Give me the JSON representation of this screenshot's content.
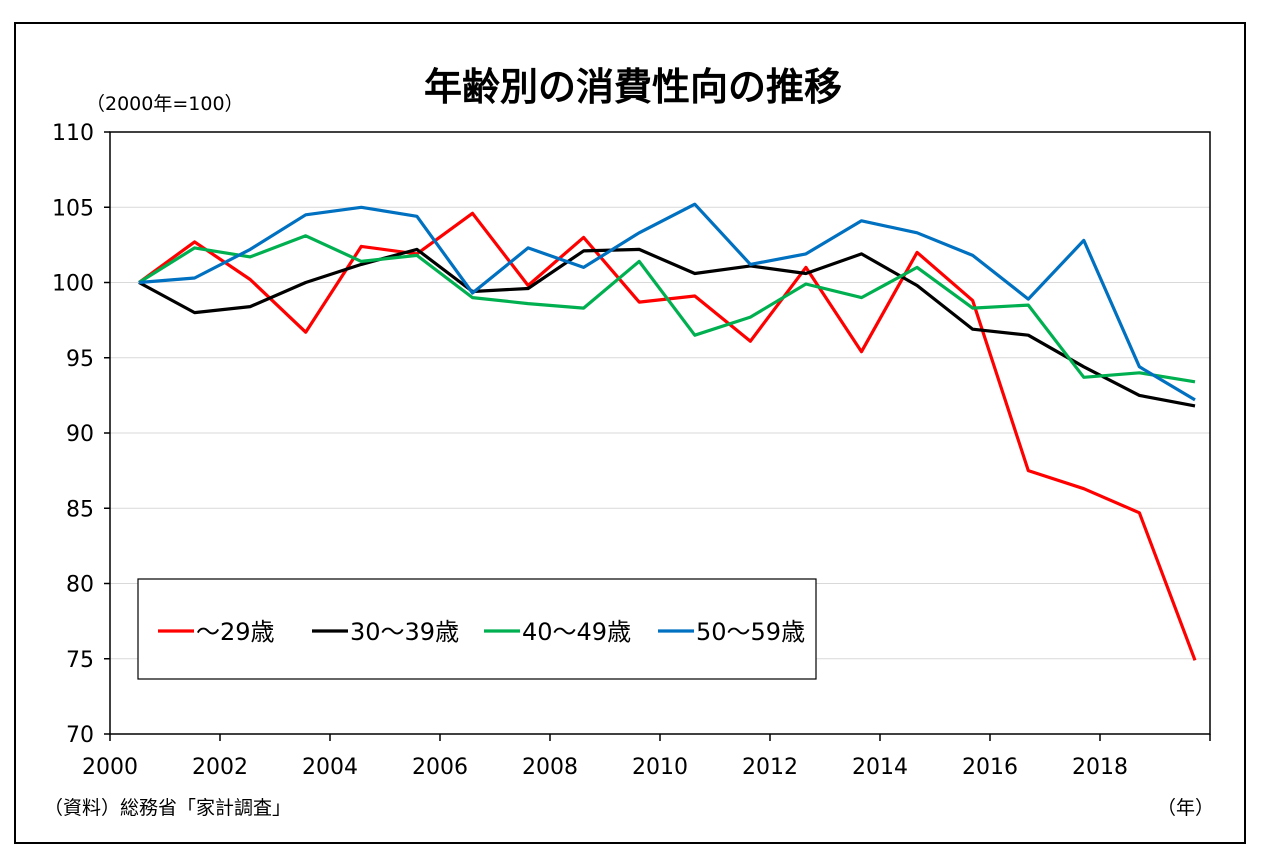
{
  "chart_data": {
    "type": "line",
    "title": "年齢別の消費性向の推移",
    "yunit": "（2000年=100）",
    "xunit": "（年）",
    "source": "（資料）総務省「家計調査」",
    "x": [
      2000,
      2001,
      2002,
      2003,
      2004,
      2005,
      2006,
      2007,
      2008,
      2009,
      2010,
      2011,
      2012,
      2013,
      2014,
      2015,
      2016,
      2017,
      2018,
      2019
    ],
    "xticks": [
      "2000",
      "2002",
      "2004",
      "2006",
      "2008",
      "2010",
      "2012",
      "2014",
      "2016",
      "2018"
    ],
    "yticks": [
      "70",
      "75",
      "80",
      "85",
      "90",
      "95",
      "100",
      "105",
      "110"
    ],
    "ylim": [
      70,
      110
    ],
    "xlim": [
      2000,
      2019.5
    ],
    "grid": true,
    "legend_position": "bottom-left",
    "series": [
      {
        "name": "〜29歳",
        "color": "#ff0000",
        "values": [
          100,
          102.7,
          100.2,
          96.7,
          102.4,
          101.9,
          104.6,
          99.8,
          103.0,
          98.7,
          99.1,
          96.1,
          101.0,
          95.4,
          102.0,
          98.8,
          87.5,
          86.3,
          84.7,
          74.9
        ]
      },
      {
        "name": "30〜39歳",
        "color": "#000000",
        "values": [
          100,
          98.0,
          98.4,
          100.0,
          101.2,
          102.2,
          99.4,
          99.6,
          102.1,
          102.2,
          100.6,
          101.1,
          100.6,
          101.9,
          99.8,
          96.9,
          96.5,
          94.4,
          92.5,
          91.8
        ]
      },
      {
        "name": "40〜49歳",
        "color": "#00b050",
        "values": [
          100,
          102.3,
          101.7,
          103.1,
          101.4,
          101.8,
          99.0,
          98.6,
          98.3,
          101.4,
          96.5,
          97.7,
          99.9,
          99.0,
          101.0,
          98.3,
          98.5,
          93.7,
          94.0,
          93.4
        ]
      },
      {
        "name": "50〜59歳",
        "color": "#0070c0",
        "values": [
          100,
          100.3,
          102.2,
          104.5,
          105.0,
          104.4,
          99.3,
          102.3,
          101.0,
          103.3,
          105.2,
          101.2,
          101.9,
          104.1,
          103.3,
          101.8,
          98.9,
          102.8,
          94.4,
          92.2
        ]
      }
    ]
  }
}
